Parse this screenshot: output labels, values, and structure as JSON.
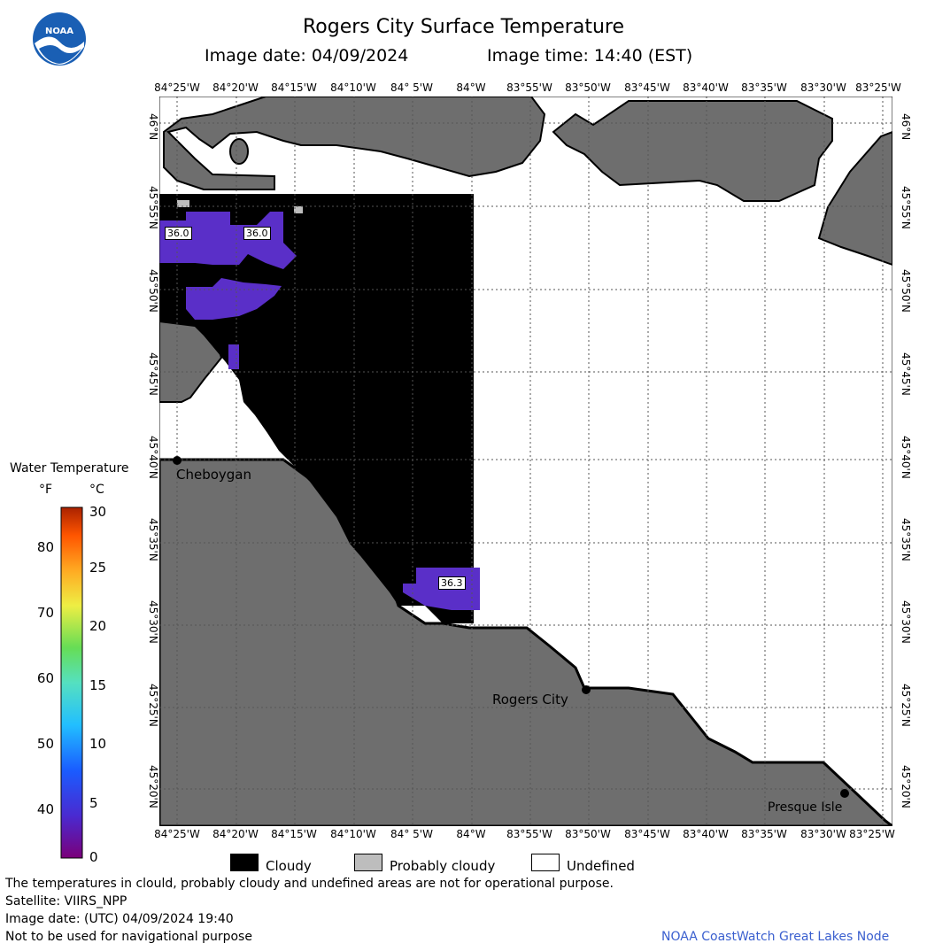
{
  "header": {
    "title": "Rogers City Surface Temperature",
    "image_date": "Image date: 04/09/2024",
    "image_time": "Image time: 14:40 (EST)"
  },
  "logo": {
    "text": "NOAA",
    "color": "#1a5fb4"
  },
  "map": {
    "longitude_labels": [
      "84°25'W",
      "84°20'W",
      "84°15'W",
      "84°10'W",
      "84° 5'W",
      "84°W",
      "83°55'W",
      "83°50'W",
      "83°45'W",
      "83°40'W",
      "83°35'W",
      "83°30'W",
      "83°25'W"
    ],
    "latitude_labels": [
      "46°N",
      "45°55'N",
      "45°50'N",
      "45°45'N",
      "45°40'N",
      "45°35'N",
      "45°30'N",
      "45°25'N",
      "45°20'N"
    ],
    "cities": [
      {
        "name": "Cheboygan"
      },
      {
        "name": "Rogers City"
      },
      {
        "name": "Presque Isle"
      }
    ],
    "temperature_labels": [
      "36.0",
      "36.0",
      "36.3"
    ],
    "colors": {
      "land": "#6e6e6e",
      "cloud": "#000000",
      "water_cold": "#5a2fc8",
      "undefined": "#ffffff"
    }
  },
  "colorbar": {
    "title": "Water Temperature",
    "unit_f": "°F",
    "unit_c": "°C",
    "fahrenheit_ticks": [
      "80",
      "70",
      "60",
      "50",
      "40"
    ],
    "celsius_ticks": [
      "30",
      "25",
      "20",
      "15",
      "10",
      "5",
      "0"
    ]
  },
  "legend": {
    "cloudy": "Cloudy",
    "probably_cloudy": "Probably cloudy",
    "undefined": "Undefined"
  },
  "footer": {
    "disclaimer": "The temperatures in clould, probably cloudy and undefined areas are not for operational purpose.",
    "satellite": "Satellite: VIIRS_NPP",
    "utc_date": "Image date: (UTC) 04/09/2024  19:40",
    "nav_warning": "Not to be used for navigational purpose",
    "credit": "NOAA CoastWatch Great Lakes Node"
  }
}
